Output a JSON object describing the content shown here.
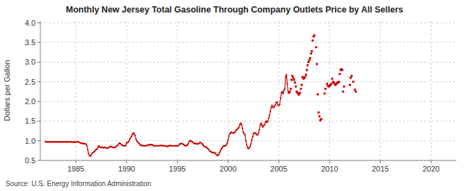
{
  "chart_data": {
    "type": "line",
    "title": "Monthly New Jersey Total Gasoline Through Company Outlets Price by All Sellers",
    "y_label": "Dollars per Gallon",
    "annotations": [
      "Source: U.S. Energy Information Administration"
    ],
    "xlim": [
      1981.5,
      2022.5
    ],
    "ylim": [
      0.5,
      4.05
    ],
    "xticks": [
      1985,
      1990,
      1995,
      2000,
      2005,
      2010,
      2015,
      2020
    ],
    "yticks": [
      0.5,
      {
        "value": 1.0,
        "label": "1.0"
      },
      1.5,
      {
        "value": 2.0,
        "label": "2.0"
      },
      2.5,
      {
        "value": 3.0,
        "label": "3.0"
      },
      3.5,
      {
        "value": 4.0,
        "label": "4.0"
      }
    ],
    "grid": true,
    "series": [
      {
        "type": "line",
        "marker": "square",
        "color": "#CC0000",
        "x": [
          1982.0,
          1982.08,
          1982.17,
          1982.25,
          1982.33,
          1982.42,
          1982.5,
          1982.58,
          1982.67,
          1982.75,
          1982.83,
          1982.92,
          1983.0,
          1983.08,
          1983.17,
          1983.25,
          1983.33,
          1983.42,
          1983.5,
          1983.58,
          1983.67,
          1983.75,
          1983.83,
          1983.92,
          1984.0,
          1984.08,
          1984.17,
          1984.25,
          1984.33,
          1984.42,
          1984.5,
          1984.58,
          1984.67,
          1984.75,
          1984.83,
          1984.92,
          1985.0,
          1985.08,
          1985.17,
          1985.25,
          1985.33,
          1985.42,
          1985.5,
          1985.58,
          1985.67,
          1985.75,
          1985.83,
          1985.92,
          1986.0,
          1986.08,
          1986.17,
          1986.25,
          1986.33,
          1986.42,
          1986.5,
          1986.58,
          1986.67,
          1986.75,
          1986.83,
          1986.92,
          1987.0,
          1987.08,
          1987.17,
          1987.25,
          1987.33,
          1987.42,
          1987.5,
          1987.58,
          1987.67,
          1987.75,
          1987.83,
          1987.92,
          1988.0,
          1988.08,
          1988.17,
          1988.25,
          1988.33,
          1988.42,
          1988.5,
          1988.58,
          1988.67,
          1988.75,
          1988.83,
          1988.92,
          1989.0,
          1989.08,
          1989.17,
          1989.25,
          1989.33,
          1989.42,
          1989.5,
          1989.58,
          1989.67,
          1989.75,
          1989.83,
          1989.92,
          1990.0,
          1990.08,
          1990.17,
          1990.25,
          1990.33,
          1990.42,
          1990.5,
          1990.58,
          1990.67,
          1990.75,
          1990.83,
          1990.92,
          1991.0,
          1991.08,
          1991.17,
          1991.25,
          1991.33,
          1991.42,
          1991.5,
          1991.58,
          1991.67,
          1991.75,
          1991.83,
          1991.92,
          1992.0,
          1992.08,
          1992.17,
          1992.25,
          1992.33,
          1992.42,
          1992.5,
          1992.58,
          1992.67,
          1992.75,
          1992.83,
          1992.92,
          1993.0,
          1993.08,
          1993.17,
          1993.25,
          1993.33,
          1993.42,
          1993.5,
          1993.58,
          1993.67,
          1993.75,
          1993.83,
          1993.92,
          1994.0,
          1994.08,
          1994.17,
          1994.25,
          1994.33,
          1994.42,
          1994.5,
          1994.58,
          1994.67,
          1994.75,
          1994.83,
          1994.92,
          1995.0,
          1995.08,
          1995.17,
          1995.25,
          1995.33,
          1995.42,
          1995.5,
          1995.58,
          1995.67,
          1995.75,
          1995.83,
          1995.92,
          1996.0,
          1996.08,
          1996.17,
          1996.25,
          1996.33,
          1996.42,
          1996.5,
          1996.58,
          1996.67,
          1996.75,
          1996.83,
          1996.92,
          1997.0,
          1997.08,
          1997.17,
          1997.25,
          1997.33,
          1997.42,
          1997.5,
          1997.58,
          1997.67,
          1997.75,
          1997.83,
          1997.92,
          1998.0,
          1998.08,
          1998.17,
          1998.25,
          1998.33,
          1998.42,
          1998.5,
          1998.58,
          1998.67,
          1998.75,
          1998.83,
          1998.92,
          1999.0,
          1999.08,
          1999.17,
          1999.25,
          1999.33,
          1999.42,
          1999.5,
          1999.58,
          1999.67,
          1999.75,
          1999.83,
          1999.92,
          2000.0,
          2000.08,
          2000.17,
          2000.25,
          2000.33,
          2000.42,
          2000.5,
          2000.58,
          2000.67,
          2000.75,
          2000.83,
          2000.92,
          2001.0,
          2001.08,
          2001.17,
          2001.25,
          2001.33,
          2001.42,
          2001.5,
          2001.58,
          2001.67,
          2001.75,
          2001.83,
          2001.92,
          2002.0,
          2002.08,
          2002.17,
          2002.25,
          2002.33,
          2002.42,
          2002.5,
          2002.58,
          2002.67,
          2002.75,
          2002.83,
          2002.92,
          2003.0,
          2003.08,
          2003.17,
          2003.25,
          2003.33,
          2003.42,
          2003.5,
          2003.58,
          2003.67,
          2003.75,
          2003.83,
          2003.92,
          2004.0,
          2004.08,
          2004.17,
          2004.25,
          2004.33,
          2004.42,
          2004.5,
          2004.58,
          2004.67,
          2004.75,
          2004.83,
          2004.92,
          2005.0,
          2005.08,
          2005.17,
          2005.25,
          2005.33,
          2005.42,
          2005.5,
          2005.58,
          2005.67,
          2005.75,
          2005.83,
          2005.92
        ],
        "values": [
          0.98,
          0.97,
          0.97,
          0.97,
          0.97,
          0.97,
          0.97,
          0.97,
          0.97,
          0.97,
          0.97,
          0.97,
          0.97,
          0.97,
          0.97,
          0.97,
          0.97,
          0.97,
          0.97,
          0.97,
          0.97,
          0.97,
          0.97,
          0.97,
          0.97,
          0.97,
          0.97,
          0.97,
          0.97,
          0.97,
          0.97,
          0.97,
          0.97,
          0.97,
          0.96,
          0.97,
          0.97,
          0.97,
          0.98,
          0.97,
          0.96,
          0.95,
          0.94,
          0.94,
          0.93,
          0.93,
          0.93,
          0.92,
          0.92,
          0.88,
          0.78,
          0.68,
          0.63,
          0.61,
          0.63,
          0.67,
          0.7,
          0.71,
          0.73,
          0.75,
          0.78,
          0.79,
          0.83,
          0.87,
          0.85,
          0.84,
          0.83,
          0.83,
          0.83,
          0.82,
          0.83,
          0.83,
          0.82,
          0.81,
          0.82,
          0.83,
          0.85,
          0.85,
          0.85,
          0.84,
          0.83,
          0.83,
          0.83,
          0.83,
          0.87,
          0.87,
          0.9,
          0.93,
          0.94,
          0.92,
          0.9,
          0.89,
          0.87,
          0.87,
          0.87,
          0.88,
          0.95,
          0.95,
          0.97,
          1.0,
          1.05,
          1.08,
          1.12,
          1.17,
          1.2,
          1.18,
          1.14,
          1.05,
          1.0,
          0.97,
          0.95,
          0.92,
          0.9,
          0.88,
          0.88,
          0.88,
          0.87,
          0.87,
          0.87,
          0.88,
          0.88,
          0.88,
          0.9,
          0.9,
          0.9,
          0.9,
          0.9,
          0.89,
          0.88,
          0.87,
          0.87,
          0.87,
          0.87,
          0.87,
          0.87,
          0.88,
          0.88,
          0.88,
          0.88,
          0.88,
          0.87,
          0.87,
          0.87,
          0.86,
          0.86,
          0.86,
          0.87,
          0.88,
          0.88,
          0.87,
          0.87,
          0.87,
          0.87,
          0.87,
          0.87,
          0.87,
          0.87,
          0.87,
          0.9,
          0.92,
          0.93,
          0.93,
          0.92,
          0.91,
          0.89,
          0.88,
          0.87,
          0.88,
          0.9,
          0.93,
          0.98,
          1.0,
          1.0,
          0.98,
          0.97,
          0.95,
          0.93,
          0.93,
          0.93,
          0.92,
          0.92,
          0.92,
          0.95,
          0.95,
          0.95,
          0.93,
          0.9,
          0.88,
          0.85,
          0.85,
          0.84,
          0.82,
          0.8,
          0.78,
          0.75,
          0.73,
          0.72,
          0.7,
          0.7,
          0.7,
          0.7,
          0.68,
          0.65,
          0.63,
          0.63,
          0.65,
          0.7,
          0.75,
          0.79,
          0.83,
          0.85,
          0.87,
          0.87,
          0.87,
          0.9,
          0.95,
          1.02,
          1.12,
          1.18,
          1.2,
          1.22,
          1.2,
          1.2,
          1.2,
          1.22,
          1.25,
          1.28,
          1.3,
          1.32,
          1.35,
          1.42,
          1.45,
          1.4,
          1.32,
          1.22,
          1.18,
          1.15,
          1.0,
          0.9,
          0.83,
          0.8,
          0.82,
          0.85,
          0.92,
          1.02,
          1.1,
          1.18,
          1.2,
          1.2,
          1.18,
          1.15,
          1.15,
          1.2,
          1.28,
          1.4,
          1.45,
          1.4,
          1.35,
          1.38,
          1.4,
          1.47,
          1.5,
          1.47,
          1.5,
          1.58,
          1.65,
          1.75,
          1.85,
          1.9,
          1.85,
          1.85,
          1.88,
          1.92,
          1.98,
          1.98,
          1.9,
          1.9,
          1.92,
          2.08,
          2.22,
          2.25,
          2.2,
          2.28,
          2.32,
          2.62,
          2.68,
          2.45,
          2.24
        ]
      },
      {
        "type": "scatter",
        "marker": "square",
        "color": "#CC0000",
        "x": [
          2006.0,
          2006.08,
          2006.17,
          2006.25,
          2006.33,
          2006.42,
          2006.5,
          2006.58,
          2006.67,
          2006.75,
          2006.83,
          2006.92,
          2007.0,
          2007.08,
          2007.17,
          2007.25,
          2007.33,
          2007.42,
          2007.5,
          2007.58,
          2007.67,
          2007.75,
          2007.83,
          2007.92,
          2008.0,
          2008.08,
          2008.17,
          2008.25,
          2008.33,
          2008.42,
          2008.5,
          2008.67,
          2008.75,
          2008.83,
          2008.92,
          2009.0,
          2009.08,
          2009.17,
          2009.5,
          2009.58,
          2009.75,
          2009.83,
          2009.92,
          2010.0,
          2010.08,
          2010.17,
          2010.25,
          2010.33,
          2010.42,
          2010.5,
          2010.58,
          2010.67,
          2010.75,
          2010.83,
          2010.92,
          2011.0,
          2011.08,
          2011.17,
          2011.25,
          2011.33,
          2011.42,
          2012.0,
          2012.08,
          2012.17,
          2012.33,
          2012.5,
          2012.58
        ],
        "values": [
          2.22,
          2.25,
          2.32,
          2.55,
          2.65,
          2.6,
          2.55,
          2.48,
          2.38,
          2.25,
          2.22,
          2.18,
          2.18,
          2.22,
          2.32,
          2.42,
          2.62,
          2.58,
          2.6,
          2.62,
          2.68,
          2.8,
          2.92,
          3.0,
          3.05,
          3.1,
          3.22,
          3.28,
          3.55,
          3.65,
          3.68,
          3.38,
          2.95,
          2.18,
          1.72,
          1.62,
          1.52,
          1.55,
          2.2,
          2.32,
          2.45,
          2.4,
          2.38,
          2.4,
          2.42,
          2.45,
          2.58,
          2.5,
          2.48,
          2.45,
          2.42,
          2.45,
          2.48,
          2.48,
          2.5,
          2.7,
          2.8,
          2.82,
          2.8,
          2.25,
          2.38,
          2.42,
          2.6,
          2.65,
          2.5,
          2.3,
          2.25
        ]
      }
    ]
  }
}
